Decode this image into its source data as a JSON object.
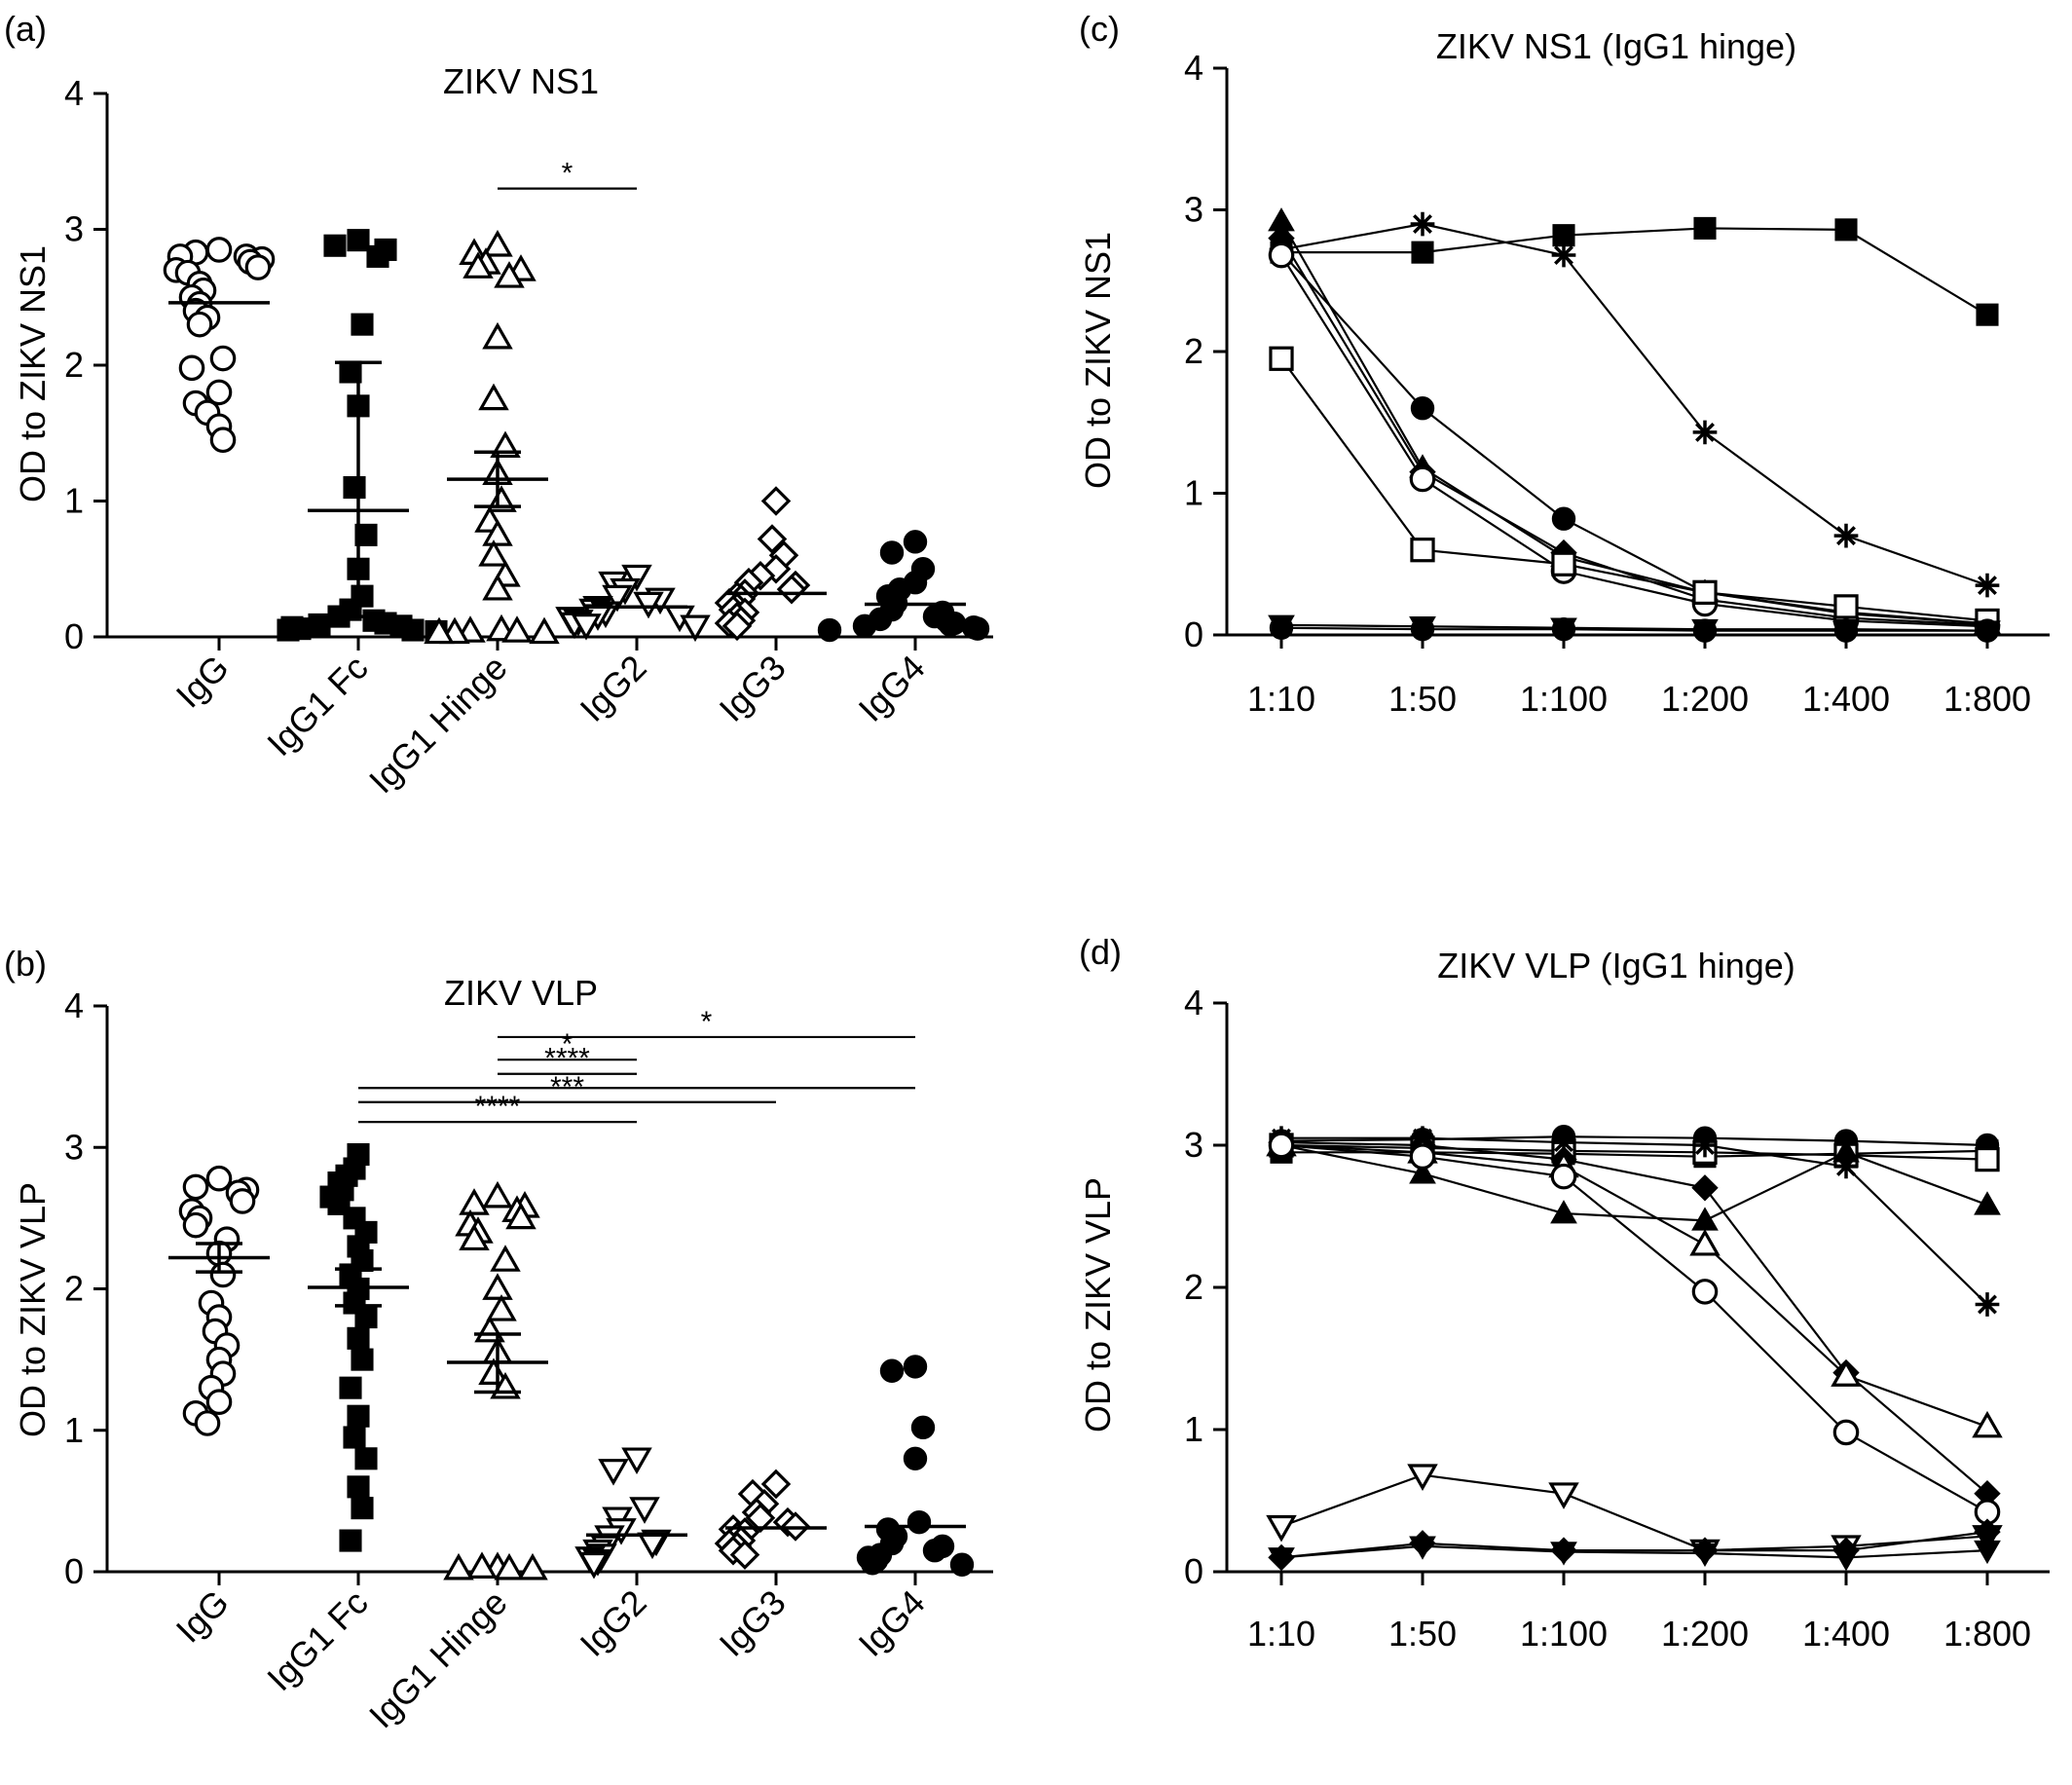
{
  "chart_data": [
    {
      "panel": "(a)",
      "type": "scatter",
      "title": "ZIKV NS1",
      "ylabel": "OD to ZIKV NS1",
      "ylim": [
        0,
        4
      ],
      "yticks": [
        "0",
        "1",
        "2",
        "3",
        "4"
      ],
      "categories": [
        "IgG",
        "IgG1 Fc",
        "IgG1 Hinge",
        "IgG2",
        "IgG3",
        "IgG4"
      ],
      "markers": [
        "circle-open",
        "square-filled",
        "triangle-open",
        "triangle-down-open",
        "diamond-open",
        "circle-filled"
      ],
      "groups": [
        {
          "values": [
            2.85,
            2.83,
            2.8,
            2.8,
            2.78,
            2.76,
            2.72,
            2.7,
            2.68,
            2.6,
            2.55,
            2.5,
            2.45,
            2.4,
            2.35,
            2.3,
            2.05,
            1.98,
            1.8,
            1.72,
            1.65,
            1.55,
            1.45
          ]
        },
        {
          "values": [
            2.92,
            2.88,
            2.85,
            2.8,
            2.3,
            1.95,
            1.7,
            1.1,
            0.75,
            0.5,
            0.3,
            0.2,
            0.15,
            0.12,
            0.1,
            0.09,
            0.08,
            0.07,
            0.06,
            0.05,
            0.05,
            0.04
          ]
        },
        {
          "values": [
            2.88,
            2.82,
            2.75,
            2.72,
            2.7,
            2.65,
            2.2,
            1.75,
            1.4,
            1.2,
            1.0,
            0.85,
            0.75,
            0.6,
            0.45,
            0.35,
            0.05,
            0.04,
            0.04,
            0.03,
            0.03,
            0.03
          ]
        },
        {
          "values": [
            0.45,
            0.4,
            0.35,
            0.3,
            0.28,
            0.25,
            0.22,
            0.2,
            0.18,
            0.16,
            0.15,
            0.14,
            0.12,
            0.1,
            0.09,
            0.08
          ]
        },
        {
          "values": [
            1.0,
            0.72,
            0.6,
            0.5,
            0.45,
            0.4,
            0.38,
            0.35,
            0.32,
            0.3,
            0.28,
            0.25,
            0.22,
            0.2,
            0.18,
            0.15,
            0.12,
            0.1,
            0.08
          ]
        },
        {
          "values": [
            0.7,
            0.62,
            0.5,
            0.4,
            0.35,
            0.3,
            0.25,
            0.2,
            0.18,
            0.15,
            0.13,
            0.12,
            0.1,
            0.09,
            0.08,
            0.07,
            0.06,
            0.05
          ]
        }
      ],
      "summary": [
        {
          "mean": 2.46,
          "sd": null
        },
        {
          "mean": 0.93,
          "sd": [
            0.15,
            2.02
          ]
        },
        {
          "mean": 1.16,
          "sd": [
            0.96,
            1.36
          ]
        },
        {
          "mean": 0.22,
          "sd": null
        },
        {
          "mean": 0.32,
          "sd": null
        },
        {
          "mean": 0.24,
          "sd": null
        }
      ],
      "significance": [
        {
          "from": 2,
          "to": 3,
          "y": 3.3,
          "label": "*"
        }
      ]
    },
    {
      "panel": "(b)",
      "type": "scatter",
      "title": "ZIKV VLP",
      "ylabel": "OD to ZIKV VLP",
      "ylim": [
        0,
        4
      ],
      "yticks": [
        "0",
        "1",
        "2",
        "3",
        "4"
      ],
      "categories": [
        "IgG",
        "IgG1 Fc",
        "IgG1 Hinge",
        "IgG2",
        "IgG3",
        "IgG4"
      ],
      "markers": [
        "circle-open",
        "square-filled",
        "triangle-open",
        "triangle-down-open",
        "diamond-open",
        "circle-filled"
      ],
      "groups": [
        {
          "values": [
            2.78,
            2.72,
            2.7,
            2.68,
            2.62,
            2.55,
            2.5,
            2.45,
            2.35,
            2.25,
            2.1,
            1.9,
            1.8,
            1.7,
            1.6,
            1.5,
            1.4,
            1.3,
            1.2,
            1.12,
            1.05
          ]
        },
        {
          "values": [
            2.95,
            2.85,
            2.8,
            2.75,
            2.7,
            2.65,
            2.6,
            2.5,
            2.4,
            2.3,
            2.2,
            2.1,
            2.0,
            1.9,
            1.8,
            1.65,
            1.5,
            1.3,
            1.1,
            0.95,
            0.8,
            0.6,
            0.45,
            0.22
          ]
        },
        {
          "values": [
            2.65,
            2.6,
            2.58,
            2.55,
            2.5,
            2.45,
            2.4,
            2.35,
            2.2,
            2.0,
            1.85,
            1.7,
            1.55,
            1.4,
            1.3,
            0.03,
            0.03,
            0.02,
            0.02,
            0.02
          ]
        },
        {
          "values": [
            0.8,
            0.72,
            0.45,
            0.38,
            0.3,
            0.25,
            0.22,
            0.2,
            0.18,
            0.15,
            0.12,
            0.1,
            0.08,
            0.06
          ]
        },
        {
          "values": [
            0.62,
            0.55,
            0.48,
            0.42,
            0.38,
            0.35,
            0.32,
            0.3,
            0.28,
            0.25,
            0.22,
            0.2,
            0.18,
            0.15,
            0.12
          ]
        },
        {
          "values": [
            1.45,
            1.42,
            1.02,
            0.8,
            0.35,
            0.3,
            0.25,
            0.2,
            0.18,
            0.15,
            0.12,
            0.1,
            0.08,
            0.06,
            0.05
          ]
        }
      ],
      "summary": [
        {
          "mean": 2.22,
          "sd": [
            2.12,
            2.32
          ]
        },
        {
          "mean": 2.01,
          "sd": [
            1.88,
            2.14
          ]
        },
        {
          "mean": 1.48,
          "sd": [
            1.27,
            1.68
          ]
        },
        {
          "mean": 0.26,
          "sd": null
        },
        {
          "mean": 0.31,
          "sd": null
        },
        {
          "mean": 0.32,
          "sd": null
        }
      ],
      "significance": [
        {
          "from": 2,
          "to": 5,
          "y": 3.78,
          "label": "*"
        },
        {
          "from": 2,
          "to": 3,
          "y": 3.62,
          "label": "*"
        },
        {
          "from": 2,
          "to": 3,
          "y": 3.52,
          "label": "****"
        },
        {
          "from": 1,
          "to": 5,
          "y": 3.42,
          "label": ""
        },
        {
          "from": 1,
          "to": 4,
          "y": 3.32,
          "label": "***"
        },
        {
          "from": 1,
          "to": 3,
          "y": 3.18,
          "label": "****"
        }
      ]
    },
    {
      "panel": "(c)",
      "type": "line",
      "title": "ZIKV NS1 (IgG1 hinge)",
      "ylabel": "",
      "ylim": [
        0,
        4
      ],
      "yticks": [
        "0",
        "1",
        "2",
        "3",
        "4"
      ],
      "categories": [
        "1:10",
        "1:50",
        "1:100",
        "1:200",
        "1:400",
        "1:800"
      ],
      "series": [
        {
          "marker": "square-filled",
          "values": [
            2.7,
            2.7,
            2.82,
            2.87,
            2.86,
            2.26
          ]
        },
        {
          "marker": "asterisk",
          "values": [
            2.72,
            2.9,
            2.68,
            1.43,
            0.7,
            0.35
          ]
        },
        {
          "marker": "circle-filled",
          "values": [
            2.7,
            1.6,
            0.82,
            0.3,
            0.15,
            0.08
          ]
        },
        {
          "marker": "triangle-filled",
          "values": [
            2.92,
            1.18,
            0.55,
            0.3,
            0.16,
            0.08
          ]
        },
        {
          "marker": "diamond-filled",
          "values": [
            2.8,
            1.15,
            0.58,
            0.25,
            0.12,
            0.07
          ]
        },
        {
          "marker": "circle-open",
          "values": [
            2.68,
            1.1,
            0.45,
            0.22,
            0.1,
            0.06
          ]
        },
        {
          "marker": "square-open",
          "values": [
            1.95,
            0.6,
            0.5,
            0.3,
            0.2,
            0.1
          ]
        },
        {
          "marker": "triangle-down-filled",
          "values": [
            0.07,
            0.06,
            0.05,
            0.04,
            0.04,
            0.03
          ]
        },
        {
          "marker": "circle-filled",
          "values": [
            0.05,
            0.04,
            0.04,
            0.03,
            0.03,
            0.03
          ]
        }
      ]
    },
    {
      "panel": "(d)",
      "type": "line",
      "title": "ZIKV VLP (IgG1 hinge)",
      "ylabel": "",
      "ylim": [
        0,
        4
      ],
      "yticks": [
        "0",
        "1",
        "2",
        "3",
        "4"
      ],
      "categories": [
        "1:10",
        "1:50",
        "1:100",
        "1:200",
        "1:400",
        "1:800"
      ],
      "series": [
        {
          "marker": "circle-filled",
          "values": [
            3.03,
            3.04,
            3.06,
            3.05,
            3.03,
            3.0
          ]
        },
        {
          "marker": "square-filled",
          "values": [
            2.95,
            2.95,
            2.94,
            2.92,
            2.94,
            2.96
          ]
        },
        {
          "marker": "square-open",
          "values": [
            3.0,
            2.98,
            2.96,
            2.95,
            2.93,
            2.9
          ]
        },
        {
          "marker": "asterisk",
          "values": [
            3.05,
            3.05,
            3.02,
            3.0,
            2.85,
            1.88
          ]
        },
        {
          "marker": "triangle-filled",
          "values": [
            3.0,
            2.8,
            2.52,
            2.47,
            2.95,
            2.58
          ]
        },
        {
          "marker": "diamond-filled",
          "values": [
            3.02,
            3.0,
            2.9,
            2.7,
            1.4,
            0.55
          ]
        },
        {
          "marker": "triangle-open",
          "values": [
            3.0,
            2.95,
            2.85,
            2.3,
            1.38,
            1.02
          ]
        },
        {
          "marker": "circle-open",
          "values": [
            3.0,
            2.92,
            2.78,
            1.97,
            0.98,
            0.42
          ]
        },
        {
          "marker": "triangle-down-open",
          "values": [
            0.32,
            0.68,
            0.55,
            0.15,
            0.18,
            0.25
          ]
        },
        {
          "marker": "diamond-filled",
          "values": [
            0.1,
            0.2,
            0.15,
            0.15,
            0.15,
            0.28
          ]
        },
        {
          "marker": "triangle-down-filled",
          "values": [
            0.1,
            0.18,
            0.14,
            0.13,
            0.1,
            0.15
          ]
        }
      ]
    }
  ]
}
